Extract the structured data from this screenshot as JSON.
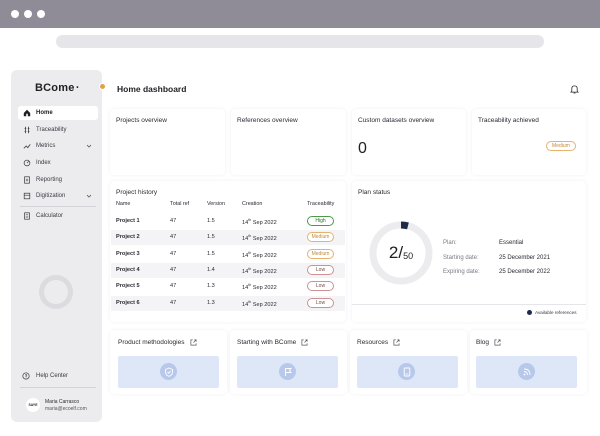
{
  "app": {
    "brand": "BCome"
  },
  "sidebar": {
    "items": [
      {
        "label": "Home",
        "icon": "home-icon",
        "active": true
      },
      {
        "label": "Traceability",
        "icon": "traceability-icon"
      },
      {
        "label": "Metrics",
        "icon": "metrics-icon",
        "expandable": true
      },
      {
        "label": "Index",
        "icon": "index-icon"
      },
      {
        "label": "Reporting",
        "icon": "reporting-icon"
      },
      {
        "label": "Digitization",
        "icon": "digitization-icon",
        "expandable": true
      },
      {
        "label": "Calculator",
        "icon": "calculator-icon"
      }
    ],
    "help_label": "Help Center",
    "user": {
      "avatar_text": "SAYE",
      "name": "Maria Carrasco",
      "email": "maria@ecoelf.com"
    }
  },
  "header": {
    "title": "Home dashboard"
  },
  "cards": {
    "projects_overview": {
      "title": "Projects overview"
    },
    "references_overview": {
      "title": "References overview"
    },
    "custom_datasets": {
      "title": "Custom datasets overview",
      "value": "0"
    },
    "traceability_achieved": {
      "title": "Traceability achieved",
      "badge": "Medium"
    }
  },
  "project_history": {
    "title": "Project history",
    "columns": [
      "Name",
      "Total ref",
      "Version",
      "Creation",
      "Traceability"
    ],
    "rows": [
      {
        "name": "Project 1",
        "total_ref": "47",
        "version": "1.5",
        "day": "14",
        "suffix": "th",
        "rest": " Sep 2022",
        "traceability": "High",
        "level": "high"
      },
      {
        "name": "Project 2",
        "total_ref": "47",
        "version": "1.5",
        "day": "14",
        "suffix": "th",
        "rest": " Sep 2022",
        "traceability": "Medium",
        "level": "medium"
      },
      {
        "name": "Project 3",
        "total_ref": "47",
        "version": "1.5",
        "day": "14",
        "suffix": "th",
        "rest": " Sep 2022",
        "traceability": "Medium",
        "level": "medium"
      },
      {
        "name": "Project 4",
        "total_ref": "47",
        "version": "1.4",
        "day": "14",
        "suffix": "th",
        "rest": " Sep 2022",
        "traceability": "Low",
        "level": "low"
      },
      {
        "name": "Project 5",
        "total_ref": "47",
        "version": "1.3",
        "day": "14",
        "suffix": "th",
        "rest": " Sep 2022",
        "traceability": "Low",
        "level": "low"
      },
      {
        "name": "Project 6",
        "total_ref": "47",
        "version": "1.3",
        "day": "14",
        "suffix": "th",
        "rest": " Sep 2022",
        "traceability": "Low",
        "level": "low"
      }
    ]
  },
  "plan_status": {
    "title": "Plan status",
    "used": 2,
    "total": 50,
    "used_text": "2/",
    "total_text": "50",
    "plan_label": "Plan:",
    "plan_value": "Essential",
    "start_label": "Starting date:",
    "start_value": "25 December 2021",
    "expire_label": "Expiring date:",
    "expire_value": "25 December 2022",
    "legend_label": "Available references"
  },
  "resources": [
    {
      "title": "Product methodologies",
      "icon": "shield-check-icon"
    },
    {
      "title": "Starting with BCome",
      "icon": "flag-icon"
    },
    {
      "title": "Resources",
      "icon": "book-icon"
    },
    {
      "title": "Blog",
      "icon": "rss-icon"
    }
  ],
  "colors": {
    "chrome": "#8f8b97",
    "sidebar_bg": "#ececee",
    "accent_dot": "#e0a24c",
    "resource_bg": "#dde7f8",
    "donut_track": "#ececee",
    "donut_fill": "#1e2a4a"
  }
}
